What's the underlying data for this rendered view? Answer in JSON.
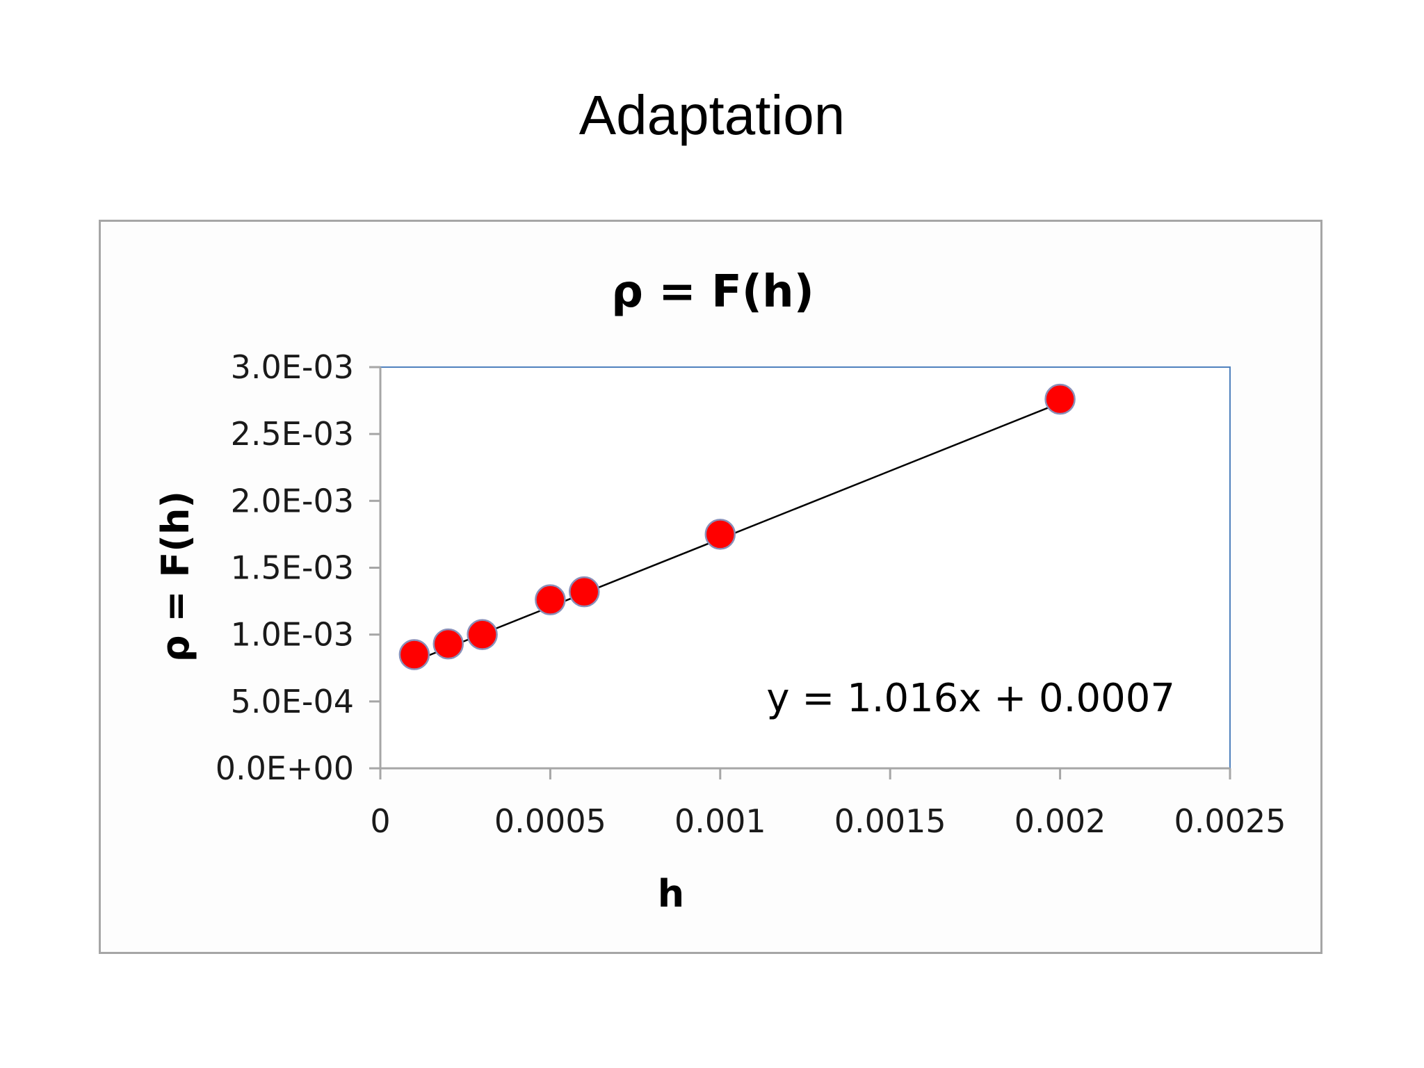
{
  "slide": {
    "title": "Adaptation"
  },
  "chart_data": {
    "type": "scatter",
    "title": "ρ = F(h)",
    "xlabel": "h",
    "ylabel": "ρ = F(h)",
    "xlim": [
      0,
      0.0025
    ],
    "ylim": [
      0,
      0.003
    ],
    "x_ticks": [
      0,
      0.0005,
      0.001,
      0.0015,
      0.002,
      0.0025
    ],
    "x_tick_labels": [
      "0",
      "0.0005",
      "0.001",
      "0.0015",
      "0.002",
      "0.0025"
    ],
    "y_ticks": [
      0,
      0.0005,
      0.001,
      0.0015,
      0.002,
      0.0025,
      0.003
    ],
    "y_tick_labels": [
      "0.0E+00",
      "5.0E-04",
      "1.0E-03",
      "1.5E-03",
      "2.0E-03",
      "2.5E-03",
      "3.0E-03"
    ],
    "series": [
      {
        "x": [
          0.0001,
          0.0002,
          0.0003,
          0.0005,
          0.0006,
          0.001,
          0.002
        ],
        "y": [
          0.00085,
          0.00093,
          0.001,
          0.00126,
          0.00132,
          0.00175,
          0.00276
        ],
        "color": "#ff0000"
      }
    ],
    "trendline": {
      "slope": 1.016,
      "intercept": 0.0007,
      "x_range": [
        0.0001,
        0.002
      ],
      "equation": "y = 1.016x + 0.0007",
      "color": "#000000"
    },
    "grid": false,
    "plot_border_color": "#4f81bd",
    "axis_color": "#a6a6a6"
  }
}
